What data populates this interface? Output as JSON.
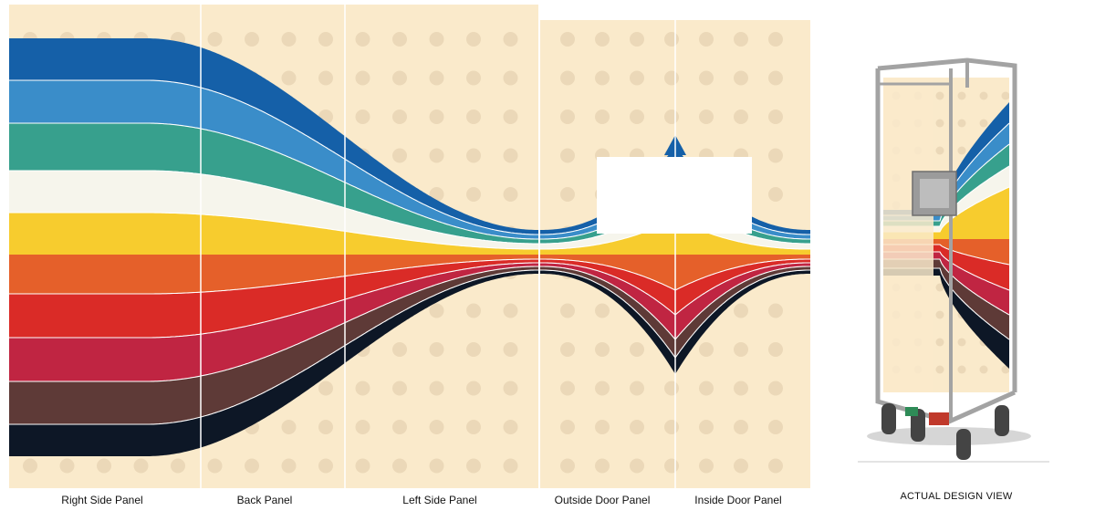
{
  "colors": {
    "background": "#FAEACB",
    "dots": "#EBD8B8",
    "divider": "#FFFFFF",
    "stripe_blue_dark": "#1560A8",
    "stripe_blue_light": "#3A8DC9",
    "stripe_teal": "#37A08D",
    "stripe_white": "#F6F5EC",
    "stripe_yellow": "#F7CC2E",
    "stripe_orange": "#E5602A",
    "stripe_red": "#DA2B27",
    "stripe_crimson": "#C02542",
    "stripe_brown": "#5E3A37",
    "stripe_navy": "#0D1726",
    "cart_frame": "#A3A3A3"
  },
  "panels": [
    {
      "label": "Right Side Panel"
    },
    {
      "label": "Back Panel"
    },
    {
      "label": "Left Side Panel"
    },
    {
      "label": "Outside Door Panel"
    },
    {
      "label": "Inside Door Panel"
    }
  ],
  "preview": {
    "label": "ACTUAL DESIGN VIEW",
    "icon": "trolley-cart-icon"
  }
}
